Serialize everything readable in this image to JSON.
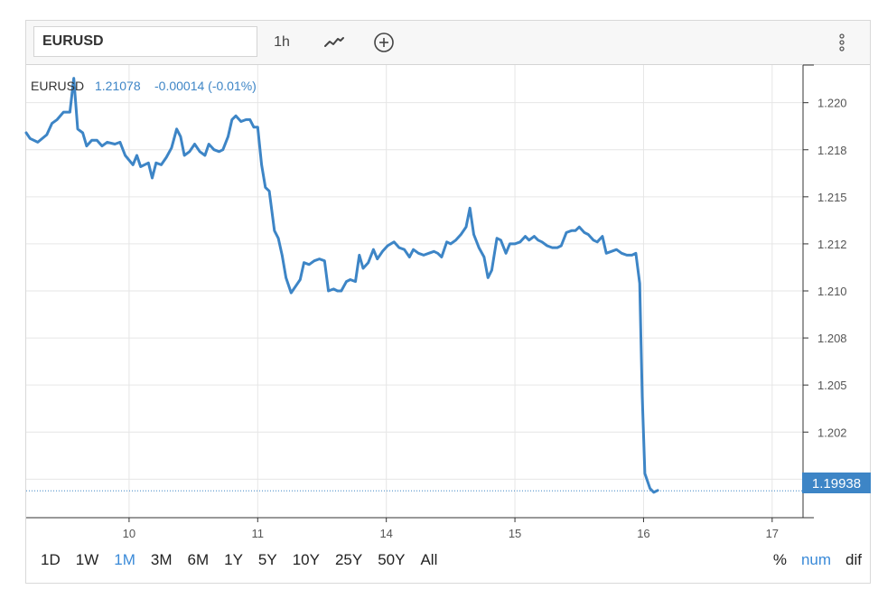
{
  "toolbar": {
    "symbol": "EURUSD",
    "interval": "1h",
    "chart_type_icon": "line-chart-icon",
    "add_icon": "plus-circle-icon",
    "menu_icon": "vertical-dots-icon"
  },
  "legend": {
    "symbol": "EURUSD",
    "price": "1.21078",
    "change": "-0.00014 (-0.01%)"
  },
  "last_price_label": "1.19938",
  "range_buttons": [
    "1D",
    "1W",
    "1M",
    "3M",
    "6M",
    "1Y",
    "5Y",
    "10Y",
    "25Y",
    "50Y",
    "All"
  ],
  "active_range": "1M",
  "scale_buttons": [
    "%",
    "num",
    "dif"
  ],
  "active_scale": "num",
  "colors": {
    "line": "#3d85c6",
    "label_bg": "#3d85c6",
    "grid": "#e6e6e6",
    "axis_text": "#555555"
  },
  "chart_data": {
    "type": "line",
    "title": "",
    "xlabel": "",
    "ylabel": "",
    "x_ticks": [
      "10",
      "11",
      "14",
      "15",
      "16",
      "17"
    ],
    "x_tick_positions": [
      1,
      2,
      3,
      4,
      5,
      6
    ],
    "xlim": [
      0.2,
      6.24
    ],
    "ylim": [
      1.198,
      1.222
    ],
    "y_ticks": [
      1.2,
      1.2025,
      1.205,
      1.2075,
      1.21,
      1.2125,
      1.215,
      1.2175,
      1.22
    ],
    "y_tick_labels": [
      "1.200",
      "1.202",
      "1.205",
      "1.208",
      "1.210",
      "1.212",
      "1.215",
      "1.218",
      "1.220"
    ],
    "grid": true,
    "last_value": 1.19938,
    "series": [
      {
        "values": [
          [
            0.2,
            1.2184
          ],
          [
            0.23,
            1.2181
          ],
          [
            0.29,
            1.2179
          ],
          [
            0.36,
            1.2183
          ],
          [
            0.4,
            1.2189
          ],
          [
            0.44,
            1.2191
          ],
          [
            0.49,
            1.2195
          ],
          [
            0.54,
            1.2195
          ],
          [
            0.57,
            1.2213
          ],
          [
            0.6,
            1.2186
          ],
          [
            0.64,
            1.2184
          ],
          [
            0.67,
            1.2177
          ],
          [
            0.71,
            1.218
          ],
          [
            0.75,
            1.218
          ],
          [
            0.79,
            1.2177
          ],
          [
            0.83,
            1.2179
          ],
          [
            0.89,
            1.2178
          ],
          [
            0.93,
            1.2179
          ],
          [
            0.97,
            1.2172
          ],
          [
            1.03,
            1.2167
          ],
          [
            1.06,
            1.2172
          ],
          [
            1.09,
            1.2166
          ],
          [
            1.15,
            1.2168
          ],
          [
            1.18,
            1.216
          ],
          [
            1.21,
            1.2168
          ],
          [
            1.25,
            1.2167
          ],
          [
            1.29,
            1.2171
          ],
          [
            1.33,
            1.2176
          ],
          [
            1.37,
            1.2186
          ],
          [
            1.4,
            1.2182
          ],
          [
            1.43,
            1.2172
          ],
          [
            1.47,
            1.2174
          ],
          [
            1.51,
            1.2178
          ],
          [
            1.55,
            1.2174
          ],
          [
            1.59,
            1.2172
          ],
          [
            1.62,
            1.2178
          ],
          [
            1.66,
            1.2175
          ],
          [
            1.7,
            1.2174
          ],
          [
            1.73,
            1.2175
          ],
          [
            1.77,
            1.2182
          ],
          [
            1.8,
            1.2191
          ],
          [
            1.83,
            1.2193
          ],
          [
            1.87,
            1.219
          ],
          [
            1.91,
            1.2191
          ],
          [
            1.94,
            1.2191
          ],
          [
            1.97,
            1.2187
          ],
          [
            2.0,
            1.2187
          ],
          [
            2.03,
            1.2167
          ],
          [
            2.06,
            1.2155
          ],
          [
            2.09,
            1.2153
          ],
          [
            2.13,
            1.2132
          ],
          [
            2.16,
            1.2128
          ],
          [
            2.19,
            1.2119
          ],
          [
            2.22,
            1.2107
          ],
          [
            2.26,
            1.2099
          ],
          [
            2.3,
            1.2103
          ],
          [
            2.33,
            1.2106
          ],
          [
            2.36,
            1.2115
          ],
          [
            2.4,
            1.2114
          ],
          [
            2.44,
            1.2116
          ],
          [
            2.48,
            1.2117
          ],
          [
            2.52,
            1.2116
          ],
          [
            2.55,
            1.21
          ],
          [
            2.59,
            1.2101
          ],
          [
            2.62,
            1.21
          ],
          [
            2.65,
            1.21
          ],
          [
            2.69,
            1.2105
          ],
          [
            2.72,
            1.2106
          ],
          [
            2.76,
            1.2105
          ],
          [
            2.79,
            1.2119
          ],
          [
            2.82,
            1.2112
          ],
          [
            2.86,
            1.2115
          ],
          [
            2.9,
            1.2122
          ],
          [
            2.93,
            1.2117
          ],
          [
            2.97,
            1.2121
          ],
          [
            3.01,
            1.2124
          ],
          [
            3.06,
            1.2126
          ],
          [
            3.1,
            1.2123
          ],
          [
            3.14,
            1.2122
          ],
          [
            3.18,
            1.2118
          ],
          [
            3.21,
            1.2122
          ],
          [
            3.25,
            1.212
          ],
          [
            3.29,
            1.2119
          ],
          [
            3.33,
            1.212
          ],
          [
            3.37,
            1.2121
          ],
          [
            3.4,
            1.212
          ],
          [
            3.43,
            1.2118
          ],
          [
            3.47,
            1.2126
          ],
          [
            3.5,
            1.2125
          ],
          [
            3.54,
            1.2127
          ],
          [
            3.58,
            1.213
          ],
          [
            3.62,
            1.2134
          ],
          [
            3.65,
            1.2144
          ],
          [
            3.68,
            1.213
          ],
          [
            3.72,
            1.2123
          ],
          [
            3.76,
            1.2118
          ],
          [
            3.79,
            1.2107
          ],
          [
            3.82,
            1.2111
          ],
          [
            3.86,
            1.2128
          ],
          [
            3.89,
            1.2127
          ],
          [
            3.93,
            1.212
          ],
          [
            3.96,
            1.2125
          ],
          [
            4.0,
            1.2125
          ],
          [
            4.04,
            1.2126
          ],
          [
            4.08,
            1.2129
          ],
          [
            4.11,
            1.2127
          ],
          [
            4.15,
            1.2129
          ],
          [
            4.18,
            1.2127
          ],
          [
            4.21,
            1.2126
          ],
          [
            4.25,
            1.2124
          ],
          [
            4.29,
            1.2123
          ],
          [
            4.33,
            1.2123
          ],
          [
            4.36,
            1.2124
          ],
          [
            4.4,
            1.2131
          ],
          [
            4.44,
            1.2132
          ],
          [
            4.47,
            1.2132
          ],
          [
            4.5,
            1.2134
          ],
          [
            4.54,
            1.2131
          ],
          [
            4.57,
            1.213
          ],
          [
            4.61,
            1.2127
          ],
          [
            4.64,
            1.2126
          ],
          [
            4.68,
            1.2129
          ],
          [
            4.71,
            1.212
          ],
          [
            4.75,
            1.2121
          ],
          [
            4.79,
            1.2122
          ],
          [
            4.83,
            1.212
          ],
          [
            4.87,
            1.2119
          ],
          [
            4.91,
            1.2119
          ],
          [
            4.94,
            1.212
          ],
          [
            4.97,
            1.2104
          ],
          [
            4.99,
            1.2044
          ],
          [
            5.01,
            1.2003
          ],
          [
            5.05,
            1.1995
          ],
          [
            5.08,
            1.1993
          ],
          [
            5.11,
            1.1994
          ]
        ]
      }
    ]
  }
}
